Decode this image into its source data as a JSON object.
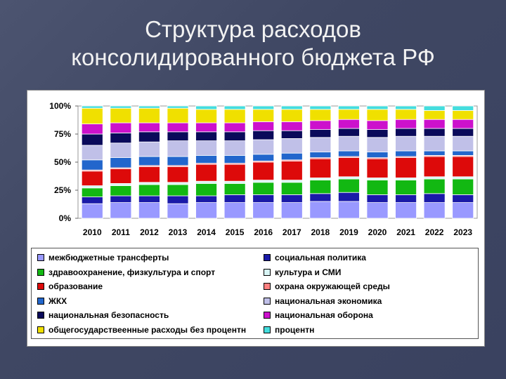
{
  "slide": {
    "title_line1": "Структура расходов",
    "title_line2": "консолидированного бюджета РФ"
  },
  "chart_data": {
    "type": "bar",
    "stacked": true,
    "percent": true,
    "categories": [
      "2010",
      "2011",
      "2012",
      "2013",
      "2014",
      "2015",
      "2016",
      "2017",
      "2018",
      "2019",
      "2020",
      "2021",
      "2022",
      "2023"
    ],
    "y_ticks": [
      "0%",
      "25%",
      "50%",
      "75%",
      "100%"
    ],
    "ylim": [
      0,
      100
    ],
    "legend_position": "bottom",
    "series": [
      {
        "name": "межбюджетные трансферты",
        "color": "#9999ff",
        "values": [
          13,
          14,
          14,
          13,
          14,
          14,
          14,
          14,
          15,
          15,
          14,
          14,
          14,
          14
        ]
      },
      {
        "name": "социальная политика",
        "color": "#1a1aa8",
        "values": [
          6,
          6,
          6,
          7,
          6,
          7,
          7,
          7,
          7,
          8,
          7,
          7,
          8,
          7
        ]
      },
      {
        "name": "здравоохранение, физкультура и спорт",
        "color": "#12b812",
        "values": [
          8,
          9,
          10,
          10,
          11,
          10,
          11,
          11,
          12,
          12,
          13,
          13,
          13,
          14
        ]
      },
      {
        "name": "культура и СМИ",
        "color": "#d8f5f5",
        "values": [
          2,
          2,
          2,
          2,
          2,
          2,
          2,
          2,
          2,
          2,
          2,
          2,
          2,
          2
        ]
      },
      {
        "name": "образование",
        "color": "#dd0a0a",
        "values": [
          13,
          13,
          14,
          14,
          15,
          15,
          16,
          17,
          17,
          17,
          17,
          18,
          18,
          18
        ]
      },
      {
        "name": "охрана окружающей среды",
        "color": "#ff8080",
        "values": [
          1,
          1,
          1,
          1,
          1,
          1,
          1,
          1,
          1,
          1,
          1,
          1,
          1,
          1
        ]
      },
      {
        "name": "ЖКХ",
        "color": "#2266cc",
        "values": [
          9,
          9,
          8,
          8,
          7,
          7,
          6,
          6,
          5,
          5,
          5,
          5,
          4,
          4
        ]
      },
      {
        "name": "национальная экономика",
        "color": "#c0c0e8",
        "values": [
          13,
          13,
          13,
          14,
          13,
          13,
          13,
          13,
          13,
          13,
          13,
          13,
          13,
          13
        ]
      },
      {
        "name": "национальная безопасность",
        "color": "#0a0a5a",
        "values": [
          10,
          9,
          9,
          8,
          8,
          8,
          8,
          7,
          7,
          7,
          7,
          7,
          7,
          7
        ]
      },
      {
        "name": "национальная оборона",
        "color": "#cc11cc",
        "values": [
          9,
          9,
          8,
          8,
          8,
          8,
          8,
          8,
          8,
          8,
          8,
          8,
          8,
          8
        ]
      },
      {
        "name": "общегосударствеенные расходы без процентн",
        "color": "#f0e000",
        "values": [
          14,
          13,
          13,
          13,
          12,
          12,
          11,
          11,
          10,
          9,
          10,
          9,
          8,
          8
        ]
      },
      {
        "name": "процентн",
        "color": "#44dddd",
        "values": [
          2,
          2,
          2,
          2,
          3,
          3,
          3,
          3,
          3,
          3,
          3,
          3,
          4,
          4
        ]
      }
    ]
  }
}
